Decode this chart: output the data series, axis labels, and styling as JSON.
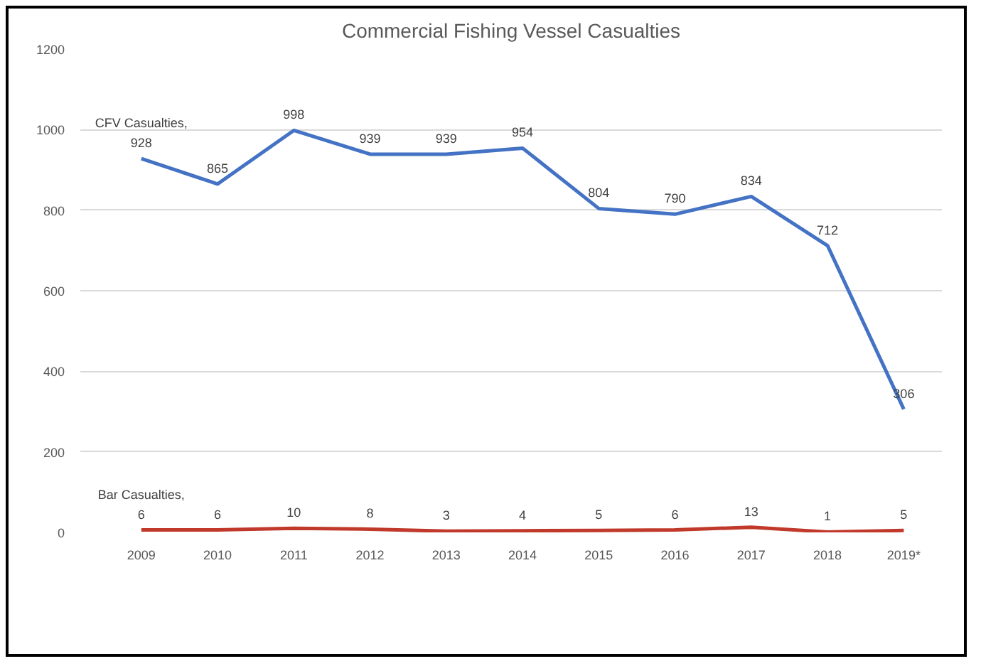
{
  "chart_data": {
    "type": "line",
    "title": "Commercial Fishing Vessel Casualties",
    "categories": [
      "2009",
      "2010",
      "2011",
      "2012",
      "2013",
      "2014",
      "2015",
      "2016",
      "2017",
      "2018",
      "2019*"
    ],
    "series": [
      {
        "name": "CFV Casualties,",
        "color": "#4472c4",
        "values": [
          928,
          865,
          998,
          939,
          939,
          954,
          804,
          790,
          834,
          712,
          306
        ]
      },
      {
        "name": "Bar Casualties,",
        "color": "#c0392b",
        "values": [
          6,
          6,
          10,
          8,
          3,
          4,
          5,
          6,
          13,
          1,
          5
        ]
      }
    ],
    "ylim": [
      0,
      1200
    ],
    "yticks": [
      0,
      200,
      400,
      600,
      800,
      1000,
      1200
    ],
    "grid": "y",
    "data_labels": true,
    "marker": "none",
    "line_style": "solid"
  }
}
